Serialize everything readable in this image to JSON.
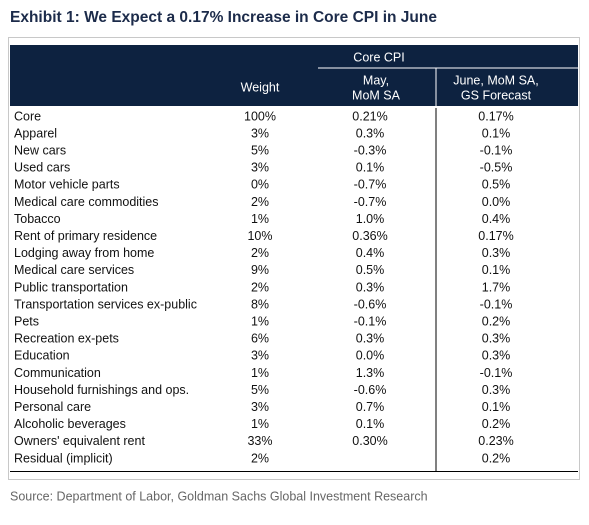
{
  "title": "Exhibit 1: We Expect a 0.17% Increase in Core CPI in June",
  "table": {
    "header": {
      "group": "Core CPI",
      "weight": "Weight",
      "may": [
        "May,",
        "MoM SA"
      ],
      "june": [
        "June, MoM SA,",
        "GS Forecast"
      ]
    },
    "rows": [
      [
        "Core",
        "100%",
        "0.21%",
        "0.17%"
      ],
      [
        "Apparel",
        "3%",
        "0.3%",
        "0.1%"
      ],
      [
        "New cars",
        "5%",
        "-0.3%",
        "-0.1%"
      ],
      [
        "Used cars",
        "3%",
        "0.1%",
        "-0.5%"
      ],
      [
        "Motor vehicle parts",
        "0%",
        "-0.7%",
        "0.5%"
      ],
      [
        "Medical care commodities",
        "2%",
        "-0.7%",
        "0.0%"
      ],
      [
        "Tobacco",
        "1%",
        "1.0%",
        "0.4%"
      ],
      [
        "Rent of primary residence",
        "10%",
        "0.36%",
        "0.17%"
      ],
      [
        "Lodging away from home",
        "2%",
        "0.4%",
        "0.3%"
      ],
      [
        "Medical care services",
        "9%",
        "0.5%",
        "0.1%"
      ],
      [
        "Public transportation",
        "2%",
        "0.3%",
        "1.7%"
      ],
      [
        "Transportation services ex-public",
        "8%",
        "-0.6%",
        "-0.1%"
      ],
      [
        "Pets",
        "1%",
        "-0.1%",
        "0.2%"
      ],
      [
        "Recreation ex-pets",
        "6%",
        "0.3%",
        "0.3%"
      ],
      [
        "Education",
        "3%",
        "0.0%",
        "0.3%"
      ],
      [
        "Communication",
        "1%",
        "1.3%",
        "-0.1%"
      ],
      [
        "Household furnishings and ops.",
        "5%",
        "-0.6%",
        "0.3%"
      ],
      [
        "Personal care",
        "3%",
        "0.7%",
        "0.1%"
      ],
      [
        "Alcoholic beverages",
        "1%",
        "0.1%",
        "0.2%"
      ],
      [
        "Owners' equivalent rent",
        "33%",
        "0.30%",
        "0.23%"
      ],
      [
        "Residual (implicit)",
        "2%",
        "",
        "0.2%"
      ]
    ]
  },
  "source": "Source: Department of Labor, Goldman Sachs Global Investment Research"
}
